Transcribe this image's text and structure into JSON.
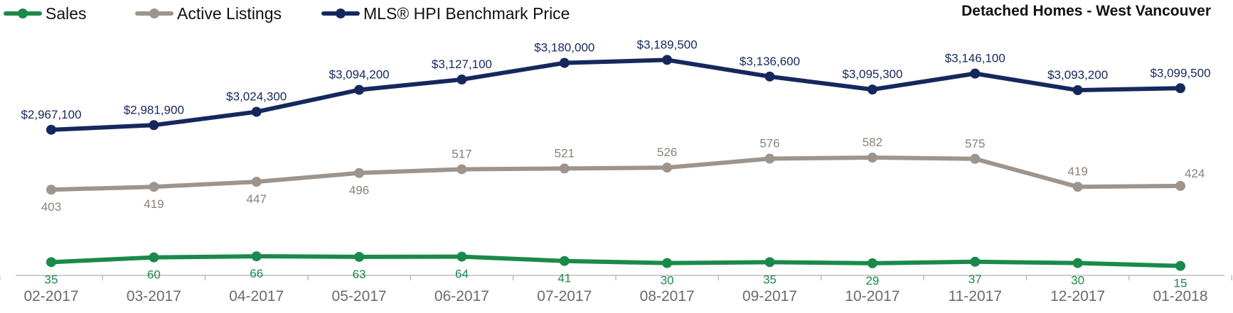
{
  "chart_data": {
    "type": "line",
    "title": "Detached Homes - West Vancouver",
    "categories": [
      "02-2017",
      "03-2017",
      "04-2017",
      "05-2017",
      "06-2017",
      "07-2017",
      "08-2017",
      "09-2017",
      "10-2017",
      "11-2017",
      "12-2017",
      "01-2018"
    ],
    "series": [
      {
        "name": "Sales",
        "color": "#1a8a4a",
        "values": [
          35,
          60,
          66,
          63,
          64,
          41,
          30,
          35,
          29,
          37,
          30,
          15
        ],
        "labels": [
          "35",
          "60",
          "66",
          "63",
          "64",
          "41",
          "30",
          "35",
          "29",
          "37",
          "30",
          "15"
        ]
      },
      {
        "name": "Active Listings",
        "color": "#9e948c",
        "values": [
          403,
          419,
          447,
          496,
          517,
          521,
          526,
          576,
          582,
          575,
          419,
          424
        ],
        "labels": [
          "403",
          "419",
          "447",
          "496",
          "517",
          "521",
          "526",
          "576",
          "582",
          "575",
          "419",
          "424"
        ]
      },
      {
        "name": "MLS® HPI Benchmark Price",
        "color": "#15285e",
        "values": [
          2967100,
          2981900,
          3024300,
          3094200,
          3127100,
          3180000,
          3189500,
          3136600,
          3095300,
          3146100,
          3093200,
          3099500
        ],
        "labels": [
          "$2,967,100",
          "$2,981,900",
          "$3,024,300",
          "$3,094,200",
          "$3,127,100",
          "$3,180,000",
          "$3,189,500",
          "$3,136,600",
          "$3,095,300",
          "$3,146,100",
          "$3,093,200",
          "$3,099,500"
        ]
      }
    ],
    "legend_position": "top-left",
    "grid": false
  }
}
